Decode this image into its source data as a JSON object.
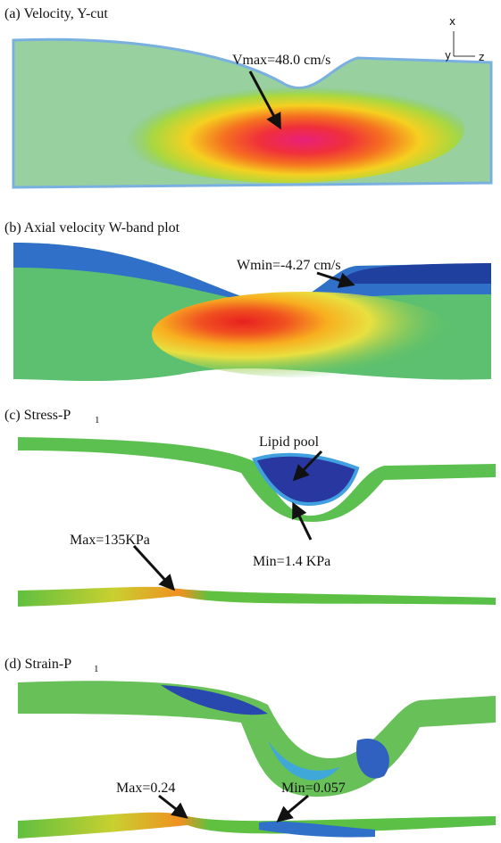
{
  "panels": [
    {
      "title": "(a) Velocity, Y-cut",
      "annotations": [
        "Vmax=48.0 cm/s"
      ],
      "axes": [
        "x",
        "y",
        "z"
      ]
    },
    {
      "title": "(b) Axial velocity W-band plot",
      "annotations": [
        "Wmin=-4.27 cm/s"
      ]
    },
    {
      "title": "(c) Stress-P",
      "title_subscript": "1",
      "annotations": [
        "Lipid pool",
        "Max=135KPa",
        "Min=1.4 KPa"
      ]
    },
    {
      "title": "(d) Strain-P",
      "title_subscript": "1",
      "annotations": [
        "Max=0.24",
        "Min=0.057"
      ]
    }
  ]
}
